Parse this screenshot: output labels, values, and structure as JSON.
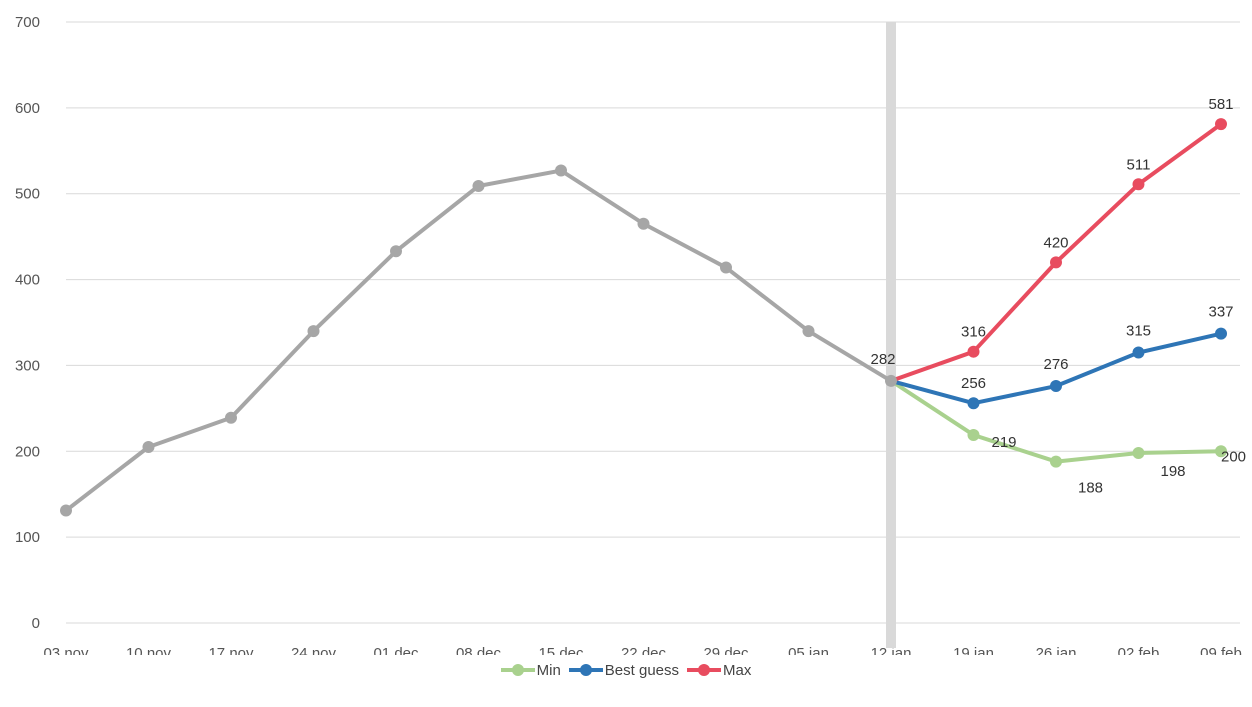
{
  "chart_data": {
    "type": "line",
    "title": "",
    "xlabel": "",
    "ylabel": "",
    "ylim": [
      0,
      700
    ],
    "yticks": [
      0,
      100,
      200,
      300,
      400,
      500,
      600,
      700
    ],
    "categories": [
      "03 nov",
      "10 nov",
      "17 nov",
      "24 nov",
      "01 dec",
      "08 dec",
      "15 dec",
      "22 dec",
      "29 dec",
      "05 jan",
      "12 jan",
      "19 jan",
      "26 jan",
      "02 feb",
      "09 feb"
    ],
    "grid": true,
    "legend_position": "bottom",
    "marker_category": "12 jan",
    "series": [
      {
        "name": "",
        "color": "#A6A6A6",
        "labels": false,
        "values": [
          131,
          205,
          239,
          340,
          433,
          509,
          527,
          465,
          414,
          340,
          282,
          null,
          null,
          null,
          null
        ]
      },
      {
        "name": "Min",
        "color": "#A9D18E",
        "labels": true,
        "values": [
          null,
          null,
          null,
          null,
          null,
          null,
          null,
          null,
          null,
          null,
          282,
          219,
          188,
          198,
          200
        ]
      },
      {
        "name": "Best guess",
        "color": "#2E75B6",
        "labels": true,
        "values": [
          null,
          null,
          null,
          null,
          null,
          null,
          null,
          null,
          null,
          null,
          282,
          256,
          276,
          315,
          337
        ]
      },
      {
        "name": "Max",
        "color": "#E84C5F",
        "labels": true,
        "values": [
          null,
          null,
          null,
          null,
          null,
          null,
          null,
          null,
          null,
          null,
          282,
          316,
          420,
          511,
          581
        ]
      }
    ],
    "data_labels": [
      {
        "series": "Max",
        "category": "12 jan",
        "value": 282
      },
      {
        "series": "Max",
        "category": "19 jan",
        "value": 316
      },
      {
        "series": "Max",
        "category": "26 jan",
        "value": 420
      },
      {
        "series": "Max",
        "category": "02 feb",
        "value": 511
      },
      {
        "series": "Max",
        "category": "09 feb",
        "value": 581
      },
      {
        "series": "Best guess",
        "category": "19 jan",
        "value": 256
      },
      {
        "series": "Best guess",
        "category": "26 jan",
        "value": 276
      },
      {
        "series": "Best guess",
        "category": "02 feb",
        "value": 315
      },
      {
        "series": "Best guess",
        "category": "09 feb",
        "value": 337
      },
      {
        "series": "Min",
        "category": "19 jan",
        "value": 219
      },
      {
        "series": "Min",
        "category": "26 jan",
        "value": 188
      },
      {
        "series": "Min",
        "category": "02 feb",
        "value": 198
      },
      {
        "series": "Min",
        "category": "09 feb",
        "value": 200
      }
    ]
  },
  "legend": {
    "items": [
      {
        "label": "Min",
        "color": "#A9D18E"
      },
      {
        "label": "Best guess",
        "color": "#2E75B6"
      },
      {
        "label": "Max",
        "color": "#E84C5F"
      }
    ]
  }
}
